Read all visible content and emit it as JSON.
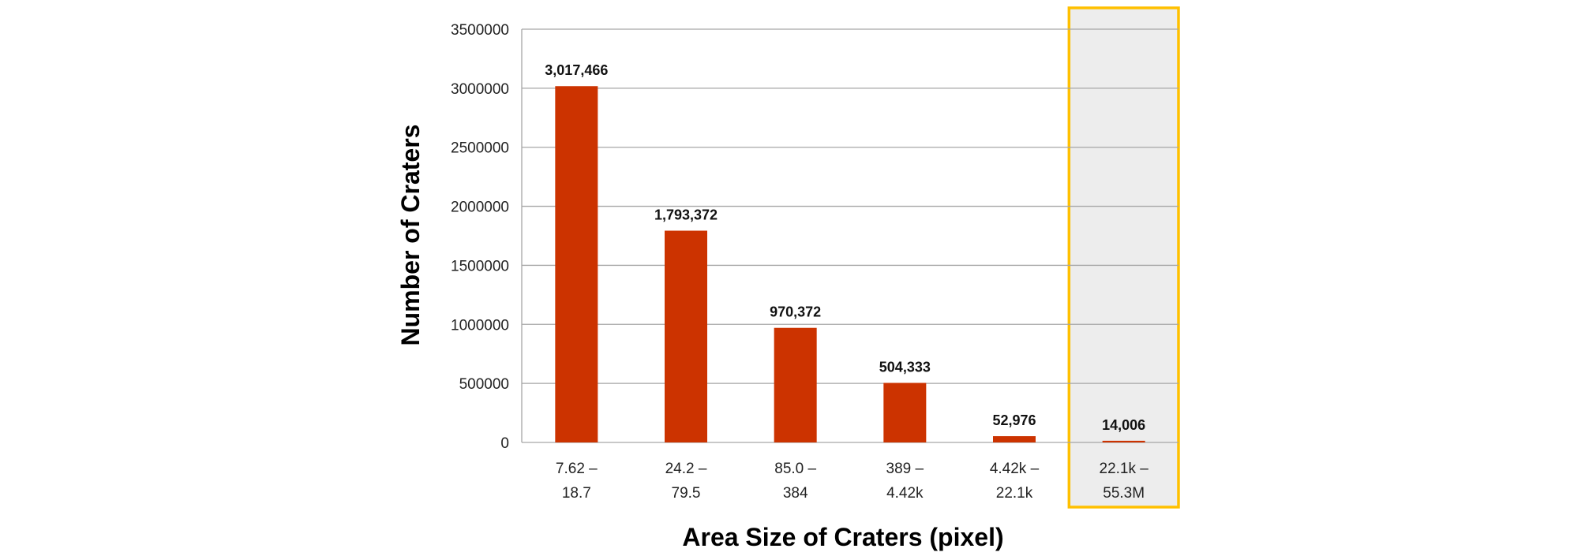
{
  "chart_data": {
    "type": "bar",
    "title": "",
    "xlabel": "Area Size of Craters (pixel)",
    "ylabel": "Number of Craters",
    "ylim": [
      0,
      3500000
    ],
    "yticks": [
      "0",
      "500000",
      "1000000",
      "1500000",
      "2000000",
      "2500000",
      "3000000",
      "3500000"
    ],
    "grid": true,
    "categories": [
      [
        "7.62 –",
        "18.7"
      ],
      [
        "24.2 –",
        "79.5"
      ],
      [
        "85.0 –",
        "384"
      ],
      [
        "389 –",
        "4.42k"
      ],
      [
        "4.42k –",
        "22.1k"
      ],
      [
        "22.1k –",
        "55.3M"
      ]
    ],
    "values": [
      3017466,
      1793372,
      970372,
      504333,
      52976,
      14006
    ],
    "data_labels": [
      "3,017,466",
      "1,793,372",
      "970,372",
      "504,333",
      "52,976",
      "14,006"
    ],
    "highlighted_category_index": 5,
    "colors": {
      "bar": "#cc3300",
      "gridline": "#a6a6a6",
      "highlight_fill": "#ededed",
      "highlight_border": "#ffc000"
    }
  }
}
